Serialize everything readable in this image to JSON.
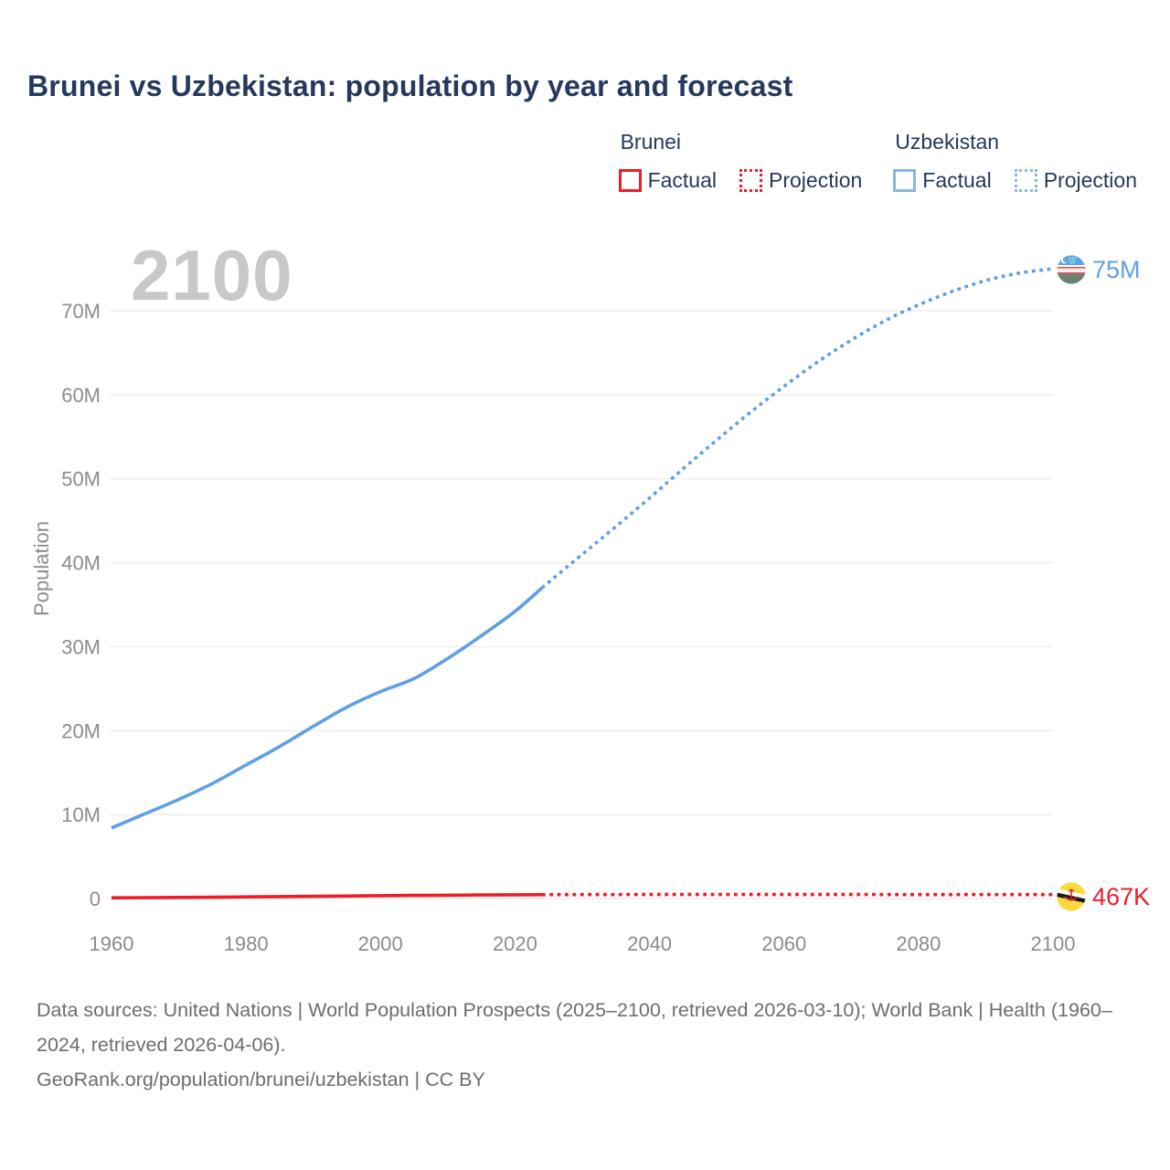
{
  "title": "Brunei vs Uzbekistan: population by year and forecast",
  "watermark_year": "2100",
  "legend": {
    "groups": [
      {
        "name": "Brunei",
        "color": "#ee1c25",
        "factual_label": "Factual",
        "projection_label": "Projection"
      },
      {
        "name": "Uzbekistan",
        "color": "#85b8ea",
        "factual_label": "Factual",
        "projection_label": "Projection"
      }
    ]
  },
  "colors": {
    "brunei_line": "#ee1c25",
    "uzbekistan_line": "#5f9fe3",
    "grid": "#ededed",
    "tick_text": "#8c8c8c",
    "title_text": "#24395c",
    "watermark": "#c8c8c8"
  },
  "end_labels": {
    "uzbekistan": {
      "text": "75M",
      "flag": "uzbekistan-flag"
    },
    "brunei": {
      "text": "467K",
      "flag": "brunei-flag"
    }
  },
  "chart_data": {
    "type": "line",
    "title": "Brunei vs Uzbekistan: population by year and forecast",
    "xlabel": "",
    "ylabel": "Population",
    "x_range": [
      1960,
      2100
    ],
    "y_range": [
      0,
      75000000
    ],
    "grid": true,
    "legend_position": "top-right",
    "x_ticks": [
      1960,
      1980,
      2000,
      2020,
      2040,
      2060,
      2080,
      2100
    ],
    "y_ticks": [
      {
        "value": 0,
        "label": "0"
      },
      {
        "value": 10000000,
        "label": "10M"
      },
      {
        "value": 20000000,
        "label": "20M"
      },
      {
        "value": 30000000,
        "label": "30M"
      },
      {
        "value": 40000000,
        "label": "40M"
      },
      {
        "value": 50000000,
        "label": "50M"
      },
      {
        "value": 60000000,
        "label": "60M"
      },
      {
        "value": 70000000,
        "label": "70M"
      }
    ],
    "series": [
      {
        "name": "Uzbekistan Factual",
        "country": "Uzbekistan",
        "kind": "factual",
        "style": "solid",
        "color": "#5f9fe3",
        "points": [
          [
            1960,
            8400000
          ],
          [
            1965,
            10100000
          ],
          [
            1970,
            11800000
          ],
          [
            1975,
            13700000
          ],
          [
            1980,
            15900000
          ],
          [
            1985,
            18100000
          ],
          [
            1990,
            20500000
          ],
          [
            1995,
            22800000
          ],
          [
            2000,
            24650000
          ],
          [
            2005,
            26200000
          ],
          [
            2010,
            28600000
          ],
          [
            2015,
            31300000
          ],
          [
            2020,
            34200000
          ],
          [
            2024,
            37000000
          ]
        ]
      },
      {
        "name": "Uzbekistan Projection",
        "country": "Uzbekistan",
        "kind": "projection",
        "style": "dotted",
        "color": "#5f9fe3",
        "points": [
          [
            2024,
            37000000
          ],
          [
            2030,
            41000000
          ],
          [
            2035,
            44300000
          ],
          [
            2040,
            47700000
          ],
          [
            2045,
            51200000
          ],
          [
            2050,
            54600000
          ],
          [
            2055,
            57900000
          ],
          [
            2060,
            61000000
          ],
          [
            2065,
            63900000
          ],
          [
            2070,
            66500000
          ],
          [
            2075,
            68800000
          ],
          [
            2080,
            70700000
          ],
          [
            2085,
            72300000
          ],
          [
            2090,
            73600000
          ],
          [
            2095,
            74500000
          ],
          [
            2100,
            75000000
          ]
        ],
        "end_label": "75M"
      },
      {
        "name": "Brunei Factual",
        "country": "Brunei",
        "kind": "factual",
        "style": "solid",
        "color": "#ee1c25",
        "points": [
          [
            1960,
            82000
          ],
          [
            1965,
            102000
          ],
          [
            1970,
            128000
          ],
          [
            1975,
            157000
          ],
          [
            1980,
            194000
          ],
          [
            1985,
            226000
          ],
          [
            1990,
            261000
          ],
          [
            1995,
            297000
          ],
          [
            2000,
            333000
          ],
          [
            2005,
            365000
          ],
          [
            2010,
            396000
          ],
          [
            2015,
            421000
          ],
          [
            2020,
            442000
          ],
          [
            2024,
            462000
          ]
        ]
      },
      {
        "name": "Brunei Projection",
        "country": "Brunei",
        "kind": "projection",
        "style": "dotted",
        "color": "#ee1c25",
        "points": [
          [
            2024,
            462000
          ],
          [
            2030,
            470000
          ],
          [
            2040,
            478000
          ],
          [
            2050,
            480000
          ],
          [
            2060,
            478000
          ],
          [
            2070,
            475000
          ],
          [
            2080,
            472000
          ],
          [
            2090,
            470000
          ],
          [
            2100,
            467000
          ]
        ],
        "end_label": "467K"
      }
    ]
  },
  "footer": {
    "sources_line": "Data sources: United Nations | World Population Prospects (2025–2100, retrieved 2026-03-10); World Bank | Health (1960–2024, retrieved 2026-04-06).",
    "attribution_line": "GeoRank.org/population/brunei/uzbekistan | CC BY"
  }
}
